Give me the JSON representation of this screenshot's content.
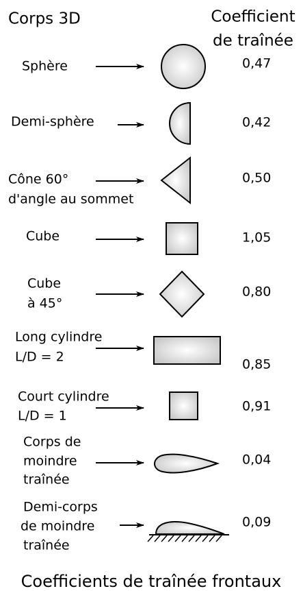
{
  "header": {
    "body_column": "Corps 3D",
    "coefficient_column": [
      "Coefficient",
      "de traînée"
    ]
  },
  "rows": [
    {
      "label": [
        "Sphère"
      ],
      "coefficient": "0,47"
    },
    {
      "label": [
        "Demi-sphère"
      ],
      "coefficient": "0,42"
    },
    {
      "label": [
        "Cône 60°",
        "d'angle au sommet"
      ],
      "coefficient": "0,50"
    },
    {
      "label": [
        "Cube"
      ],
      "coefficient": "1,05"
    },
    {
      "label": [
        "Cube",
        "à 45°"
      ],
      "coefficient": "0,80"
    },
    {
      "label": [
        "Long cylindre",
        "L/D = 2"
      ],
      "coefficient": "0,85"
    },
    {
      "label": [
        "Court cylindre",
        "L/D = 1"
      ],
      "coefficient": "0,91"
    },
    {
      "label": [
        "Corps de",
        "moindre",
        "traînée"
      ],
      "coefficient": "0,04"
    },
    {
      "label": [
        "Demi-corps",
        "de moindre",
        "traînée"
      ],
      "coefficient": "0,09"
    }
  ],
  "footer": "Coefficients de traînée frontaux"
}
